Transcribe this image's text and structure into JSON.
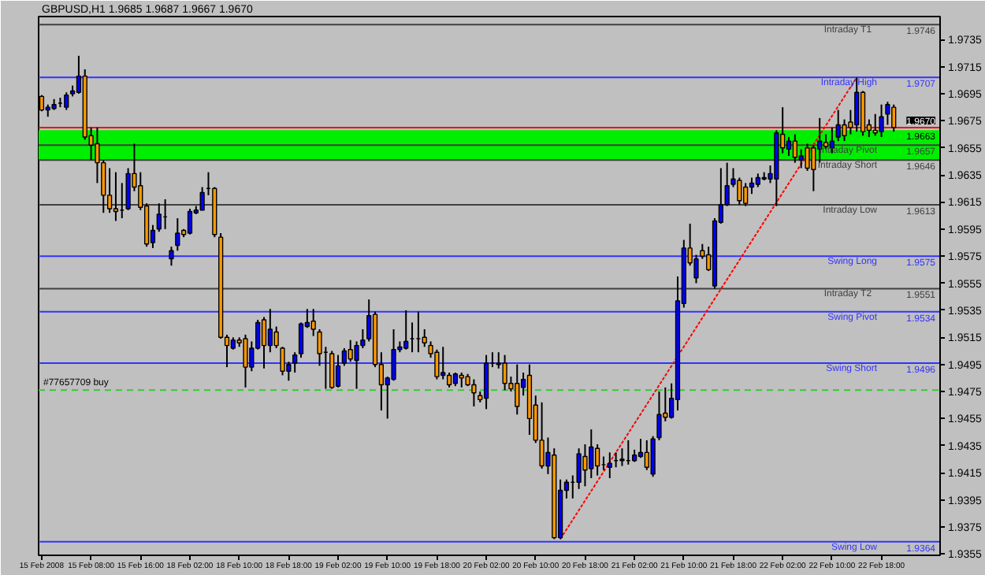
{
  "chart_data": {
    "type": "candlestick",
    "title": "GBPUSD,H1  1.9685 1.9687 1.9667 1.9670",
    "categories": [
      "15 Feb 2008",
      null,
      null,
      null,
      null,
      null,
      null,
      null,
      "15 Feb 08:00",
      null,
      null,
      null,
      null,
      null,
      null,
      null,
      "15 Feb 16:00",
      null,
      null,
      null,
      null,
      null,
      null,
      null,
      "18 Feb 02:00",
      null,
      null,
      null,
      null,
      null,
      null,
      null,
      "18 Feb 10:00",
      null,
      null,
      null,
      null,
      null,
      null,
      null,
      "18 Feb 18:00",
      null,
      null,
      null,
      null,
      null,
      null,
      null,
      "19 Feb 02:00",
      null,
      null,
      null,
      null,
      null,
      null,
      null,
      "19 Feb 10:00",
      null,
      null,
      null,
      null,
      null,
      null,
      null,
      "19 Feb 18:00",
      null,
      null,
      null,
      null,
      null,
      null,
      null,
      "20 Feb 02:00",
      null,
      null,
      null,
      null,
      null,
      null,
      null,
      "20 Feb 10:00",
      null,
      null,
      null,
      null,
      null,
      null,
      null,
      "20 Feb 18:00",
      null,
      null,
      null,
      null,
      null,
      null,
      null,
      "21 Feb 02:00",
      null,
      null,
      null,
      null,
      null,
      null,
      null,
      "21 Feb 10:00",
      null,
      null,
      null,
      null,
      null,
      null,
      null,
      "21 Feb 18:00",
      null,
      null,
      null,
      null,
      null,
      null,
      null,
      "22 Feb 02:00",
      null,
      null,
      null,
      null,
      null,
      null,
      null,
      "22 Feb 10:00",
      null,
      null,
      null,
      null,
      null,
      null,
      null,
      "22 Feb 18:00",
      null,
      null,
      null,
      null,
      null,
      null,
      null,
      null,
      null
    ],
    "ylim": [
      1.9354,
      1.9752
    ],
    "yticks": [
      1.9355,
      1.9375,
      1.9395,
      1.9415,
      1.9435,
      1.9455,
      1.9475,
      1.9495,
      1.9515,
      1.9535,
      1.9555,
      1.9575,
      1.9595,
      1.9615,
      1.9635,
      1.9655,
      1.9675,
      1.9695,
      1.9715,
      1.9735
    ],
    "ohlc": [
      [
        1.9693,
        1.9694,
        1.9682,
        1.9683
      ],
      [
        1.9683,
        1.9687,
        1.9678,
        1.9685
      ],
      [
        1.9684,
        1.9691,
        1.9683,
        1.9687
      ],
      [
        1.9688,
        1.9692,
        1.9685,
        1.9688
      ],
      [
        1.9685,
        1.9696,
        1.9683,
        1.9694
      ],
      [
        1.9695,
        1.9701,
        1.9693,
        1.9697
      ],
      [
        1.9696,
        1.9723,
        1.9695,
        1.9708
      ],
      [
        1.9708,
        1.9713,
        1.9661,
        1.9663
      ],
      [
        1.9664,
        1.967,
        1.9646,
        1.9657
      ],
      [
        1.9658,
        1.967,
        1.9629,
        1.9644
      ],
      [
        1.9644,
        1.9646,
        1.9607,
        1.962
      ],
      [
        1.962,
        1.964,
        1.9607,
        1.961
      ],
      [
        1.961,
        1.9637,
        1.9601,
        1.9608
      ],
      [
        1.9609,
        1.9629,
        1.9603,
        1.9609
      ],
      [
        1.961,
        1.964,
        1.9609,
        1.9636
      ],
      [
        1.9636,
        1.9658,
        1.9623,
        1.9626
      ],
      [
        1.9627,
        1.9637,
        1.9609,
        1.9611
      ],
      [
        1.9612,
        1.9614,
        1.9582,
        1.9584
      ],
      [
        1.9585,
        1.9598,
        1.9581,
        1.9594
      ],
      [
        1.9595,
        1.9614,
        1.9593,
        1.9606
      ],
      [
        1.9604,
        1.9617,
        1.9595,
        1.9604
      ],
      [
        1.9573,
        1.9582,
        1.9568,
        1.9579
      ],
      [
        1.9583,
        1.9603,
        1.9579,
        1.9592
      ],
      [
        1.9594,
        1.9595,
        1.9589,
        1.9591
      ],
      [
        1.9592,
        1.961,
        1.9591,
        1.9608
      ],
      [
        1.9607,
        1.9612,
        1.9606,
        1.9609
      ],
      [
        1.9609,
        1.9626,
        1.9609,
        1.9622
      ],
      [
        1.9625,
        1.9637,
        1.962,
        1.9625
      ],
      [
        1.9625,
        1.9626,
        1.9589,
        1.9591
      ],
      [
        1.9589,
        1.9592,
        1.9514,
        1.9515
      ],
      [
        1.9515,
        1.9517,
        1.9493,
        1.9509
      ],
      [
        1.9507,
        1.9515,
        1.9506,
        1.9513
      ],
      [
        1.9513,
        1.9515,
        1.9508,
        1.9511
      ],
      [
        1.9514,
        1.9517,
        1.9478,
        1.9493
      ],
      [
        1.9493,
        1.9512,
        1.949,
        1.9507
      ],
      [
        1.9507,
        1.9528,
        1.9506,
        1.9526
      ],
      [
        1.9528,
        1.953,
        1.9492,
        1.9509
      ],
      [
        1.9509,
        1.9536,
        1.9504,
        1.9521
      ],
      [
        1.9519,
        1.9523,
        1.9507,
        1.9509
      ],
      [
        1.9507,
        1.9508,
        1.9487,
        1.949
      ],
      [
        1.949,
        1.9497,
        1.9483,
        1.9495
      ],
      [
        1.9496,
        1.9504,
        1.9489,
        1.9502
      ],
      [
        1.9503,
        1.9526,
        1.95,
        1.9525
      ],
      [
        1.9523,
        1.9536,
        1.9522,
        1.9526
      ],
      [
        1.9527,
        1.9536,
        1.9516,
        1.9521
      ],
      [
        1.9519,
        1.9521,
        1.9494,
        1.9503
      ],
      [
        1.9504,
        1.9508,
        1.9477,
        1.9504
      ],
      [
        1.9503,
        1.9505,
        1.9477,
        1.9478
      ],
      [
        1.9479,
        1.9502,
        1.9478,
        1.9494
      ],
      [
        1.9496,
        1.9507,
        1.9494,
        1.9505
      ],
      [
        1.9506,
        1.9513,
        1.9497,
        1.9499
      ],
      [
        1.9498,
        1.9512,
        1.9477,
        1.9509
      ],
      [
        1.9509,
        1.9521,
        1.9507,
        1.9513
      ],
      [
        1.9514,
        1.9543,
        1.9512,
        1.9531
      ],
      [
        1.9532,
        1.9534,
        1.9493,
        1.9495
      ],
      [
        1.9495,
        1.9504,
        1.9461,
        1.948
      ],
      [
        1.948,
        1.9486,
        1.9455,
        1.9485
      ],
      [
        1.9484,
        1.9521,
        1.9483,
        1.9506
      ],
      [
        1.9506,
        1.9512,
        1.9504,
        1.9508
      ],
      [
        1.9507,
        1.9535,
        1.9506,
        1.9512
      ],
      [
        1.9514,
        1.9526,
        1.9504,
        1.9514
      ],
      [
        1.9514,
        1.9534,
        1.9504,
        1.9514
      ],
      [
        1.9515,
        1.9521,
        1.9508,
        1.9511
      ],
      [
        1.9509,
        1.9512,
        1.95,
        1.9503
      ],
      [
        1.9504,
        1.9506,
        1.9484,
        1.9486
      ],
      [
        1.9487,
        1.9508,
        1.9484,
        1.9489
      ],
      [
        1.9487,
        1.9489,
        1.9478,
        1.948
      ],
      [
        1.9481,
        1.9489,
        1.9479,
        1.9488
      ],
      [
        1.9487,
        1.9489,
        1.9478,
        1.9485
      ],
      [
        1.9486,
        1.9488,
        1.9479,
        1.948
      ],
      [
        1.948,
        1.9484,
        1.9464,
        1.9474
      ],
      [
        1.9472,
        1.9475,
        1.9467,
        1.9469
      ],
      [
        1.947,
        1.9502,
        1.9462,
        1.9496
      ],
      [
        1.9496,
        1.9504,
        1.9493,
        1.9496
      ],
      [
        1.9495,
        1.9504,
        1.9492,
        1.9496
      ],
      [
        1.9496,
        1.9502,
        1.9476,
        1.9481
      ],
      [
        1.9481,
        1.9486,
        1.9475,
        1.9477
      ],
      [
        1.9481,
        1.9495,
        1.9458,
        1.9464
      ],
      [
        1.9478,
        1.9489,
        1.9472,
        1.9484
      ],
      [
        1.9487,
        1.9495,
        1.9443,
        1.9455
      ],
      [
        1.9465,
        1.9472,
        1.9437,
        1.9439
      ],
      [
        1.9439,
        1.9467,
        1.9418,
        1.942
      ],
      [
        1.942,
        1.9441,
        1.9414,
        1.943
      ],
      [
        1.9428,
        1.9433,
        1.9366,
        1.9367
      ],
      [
        1.9367,
        1.941,
        1.9366,
        1.9402
      ],
      [
        1.9402,
        1.941,
        1.9396,
        1.9408
      ],
      [
        1.9408,
        1.9413,
        1.9396,
        1.9408
      ],
      [
        1.9408,
        1.9433,
        1.9403,
        1.9429
      ],
      [
        1.9427,
        1.9436,
        1.9405,
        1.9417
      ],
      [
        1.9418,
        1.9447,
        1.9411,
        1.9434
      ],
      [
        1.9433,
        1.9436,
        1.9413,
        1.942
      ],
      [
        1.9421,
        1.9427,
        1.9417,
        1.9421
      ],
      [
        1.9419,
        1.943,
        1.9411,
        1.9422
      ],
      [
        1.9424,
        1.943,
        1.9419,
        1.9424
      ],
      [
        1.9424,
        1.9433,
        1.942,
        1.9425
      ],
      [
        1.9424,
        1.9439,
        1.9421,
        1.9424
      ],
      [
        1.9424,
        1.9432,
        1.9423,
        1.9428
      ],
      [
        1.9427,
        1.944,
        1.9426,
        1.943
      ],
      [
        1.943,
        1.9439,
        1.9417,
        1.9419
      ],
      [
        1.9414,
        1.9442,
        1.9412,
        1.944
      ],
      [
        1.9441,
        1.9475,
        1.9439,
        1.9458
      ],
      [
        1.9459,
        1.9478,
        1.9453,
        1.9456
      ],
      [
        1.9456,
        1.9481,
        1.9455,
        1.947
      ],
      [
        1.9469,
        1.956,
        1.9461,
        1.9542
      ],
      [
        1.954,
        1.9587,
        1.9537,
        1.9581
      ],
      [
        1.9581,
        1.9599,
        1.9568,
        1.957
      ],
      [
        1.9559,
        1.9576,
        1.9555,
        1.9573
      ],
      [
        1.9579,
        1.9584,
        1.9573,
        1.9575
      ],
      [
        1.9576,
        1.9582,
        1.9564,
        1.9565
      ],
      [
        1.9553,
        1.9603,
        1.9551,
        1.9601
      ],
      [
        1.96,
        1.964,
        1.9599,
        1.9613
      ],
      [
        1.9613,
        1.9644,
        1.9612,
        1.9627
      ],
      [
        1.9628,
        1.964,
        1.9626,
        1.9632
      ],
      [
        1.9631,
        1.9633,
        1.9613,
        1.9616
      ],
      [
        1.9626,
        1.9629,
        1.9612,
        1.9614
      ],
      [
        1.9626,
        1.9633,
        1.9621,
        1.9629
      ],
      [
        1.9628,
        1.9636,
        1.9626,
        1.9633
      ],
      [
        1.9632,
        1.9637,
        1.9631,
        1.9633
      ],
      [
        1.9632,
        1.9642,
        1.9629,
        1.9636
      ],
      [
        1.9632,
        1.9668,
        1.9612,
        1.9666
      ],
      [
        1.9665,
        1.9685,
        1.9651,
        1.9655
      ],
      [
        1.9654,
        1.9663,
        1.9649,
        1.966
      ],
      [
        1.966,
        1.9665,
        1.9644,
        1.9648
      ],
      [
        1.9646,
        1.9654,
        1.964,
        1.9649
      ],
      [
        1.9655,
        1.9658,
        1.9638,
        1.964
      ],
      [
        1.9655,
        1.9657,
        1.9623,
        1.9639
      ],
      [
        1.9654,
        1.9677,
        1.9644,
        1.966
      ],
      [
        1.9659,
        1.9665,
        1.9654,
        1.9656
      ],
      [
        1.9655,
        1.967,
        1.9651,
        1.966
      ],
      [
        1.9663,
        1.9683,
        1.966,
        1.9672
      ],
      [
        1.9672,
        1.9676,
        1.966,
        1.9664
      ],
      [
        1.9674,
        1.9683,
        1.9665,
        1.967
      ],
      [
        1.9672,
        1.9707,
        1.9667,
        1.9696
      ],
      [
        1.9696,
        1.9697,
        1.9664,
        1.9667
      ],
      [
        1.9672,
        1.9676,
        1.9663,
        1.9668
      ],
      [
        1.9668,
        1.968,
        1.9664,
        1.9666
      ],
      [
        1.9667,
        1.9687,
        1.9663,
        1.9678
      ],
      [
        1.968,
        1.9689,
        1.9672,
        1.9687
      ],
      [
        1.9685,
        1.9687,
        1.9667,
        1.967
      ],
      null,
      null,
      null,
      null,
      null,
      null,
      null
    ],
    "colors": [
      "#ff9900",
      "#0000ff",
      "#0000ff",
      "#000000",
      "#0000ff",
      "#0000ff",
      "#0000ff",
      "#ff9900",
      "#ff9900",
      "#ff9900",
      "#ff9900",
      "#ff9900",
      "#ff9900",
      "#000000",
      "#0000ff",
      "#ff9900",
      "#ff9900",
      "#ff9900",
      "#0000ff",
      "#0000ff",
      "#000000",
      "#0000ff",
      "#0000ff",
      "#ff9900",
      "#0000ff",
      "#0000ff",
      "#0000ff",
      "#000000",
      "#ff9900",
      "#ff9900",
      "#ff9900",
      "#0000ff",
      "#ff9900",
      "#ff9900",
      "#0000ff",
      "#0000ff",
      "#ff9900",
      "#0000ff",
      "#ff9900",
      "#ff9900",
      "#0000ff",
      "#0000ff",
      "#0000ff",
      "#0000ff",
      "#ff9900",
      "#ff9900",
      "#000000",
      "#ff9900",
      "#0000ff",
      "#0000ff",
      "#ff9900",
      "#0000ff",
      "#0000ff",
      "#0000ff",
      "#ff9900",
      "#ff9900",
      "#0000ff",
      "#0000ff",
      "#0000ff",
      "#0000ff",
      "#000000",
      "#000000",
      "#ff9900",
      "#ff9900",
      "#ff9900",
      "#0000ff",
      "#ff9900",
      "#0000ff",
      "#ff9900",
      "#ff9900",
      "#ff9900",
      "#ff9900",
      "#0000ff",
      "#000000",
      "#0000ff",
      "#ff9900",
      "#ff9900",
      "#ff9900",
      "#0000ff",
      "#ff9900",
      "#ff9900",
      "#ff9900",
      "#0000ff",
      "#ff9900",
      "#0000ff",
      "#0000ff",
      "#000000",
      "#0000ff",
      "#ff9900",
      "#0000ff",
      "#ff9900",
      "#000000",
      "#0000ff",
      "#000000",
      "#0000ff",
      "#000000",
      "#0000ff",
      "#0000ff",
      "#ff9900",
      "#0000ff",
      "#0000ff",
      "#ff9900",
      "#0000ff",
      "#0000ff",
      "#0000ff",
      "#ff9900",
      "#0000ff",
      "#ff9900",
      "#ff9900",
      "#0000ff",
      "#0000ff",
      "#0000ff",
      "#0000ff",
      "#ff9900",
      "#ff9900",
      "#0000ff",
      "#0000ff",
      "#0000ff",
      "#0000ff",
      "#0000ff",
      "#ff9900",
      "#0000ff",
      "#ff9900",
      "#0000ff",
      "#ff9900",
      "#ff9900",
      "#0000ff",
      "#ff9900",
      "#0000ff",
      "#0000ff",
      "#ff9900",
      "#ff9900",
      "#0000ff",
      "#ff9900",
      "#ff9900",
      "#ff9900",
      "#0000ff",
      "#0000ff",
      "#ff9900",
      null,
      null,
      null,
      null,
      null,
      null,
      null
    ],
    "series": [
      {
        "type": "line",
        "values": [
          null,
          null,
          null,
          null,
          null,
          null,
          null,
          null,
          null,
          null,
          null,
          null,
          null,
          null,
          null,
          null,
          null,
          null,
          null,
          null,
          null,
          null,
          null,
          null,
          null,
          null,
          null,
          null,
          null,
          null,
          null,
          null,
          null,
          null,
          null,
          null,
          null,
          null,
          null,
          null,
          null,
          null,
          null,
          null,
          null,
          null,
          null,
          null,
          null,
          null,
          null,
          null,
          null,
          null,
          null,
          null,
          null,
          null,
          null,
          null,
          null,
          null,
          null,
          null,
          null,
          null,
          null,
          null,
          null,
          null,
          null,
          null,
          null,
          null,
          null,
          null,
          null,
          null,
          null,
          null,
          null,
          null,
          null,
          null,
          1.9366,
          null,
          null,
          null,
          null,
          null,
          null,
          null,
          null,
          null,
          null,
          null,
          null,
          null,
          null,
          null,
          null,
          null,
          null,
          null,
          null,
          null,
          null,
          null,
          null,
          null,
          null,
          null,
          null,
          null,
          null,
          null,
          null,
          null,
          null,
          null,
          null,
          null,
          null,
          null,
          null,
          null,
          null,
          null,
          null,
          null,
          null,
          null,
          1.9707,
          null,
          null,
          null,
          null,
          null,
          null,
          null,
          null,
          null,
          null,
          null,
          null,
          null
        ],
        "color": "#ff0000",
        "line_style": "dotted"
      }
    ],
    "bands": [
      {
        "axis": "y",
        "from": 1.9646,
        "to": 1.9668,
        "label": "1.9663",
        "color": "#00ee00"
      }
    ],
    "ref_lines": [
      {
        "axis": "y",
        "value": 1.9746,
        "label": "Intraday   T1",
        "color": "#404040"
      },
      {
        "axis": "y",
        "value": 1.9707,
        "label": "Intraday High",
        "color": "#3333ff"
      },
      {
        "axis": "y",
        "value": 1.967,
        "label": null,
        "color": "#ff0000"
      },
      {
        "axis": "y",
        "value": 1.9657,
        "label": "Intraday Pivot",
        "color": "#404040"
      },
      {
        "axis": "y",
        "value": 1.9646,
        "label": "Intraday Short",
        "color": "#404040"
      },
      {
        "axis": "y",
        "value": 1.9613,
        "label": "Intraday Low",
        "color": "#404040"
      },
      {
        "axis": "y",
        "value": 1.9575,
        "label": "Swing Long",
        "color": "#3333ff"
      },
      {
        "axis": "y",
        "value": 1.9551,
        "label": "Intraday   T2",
        "color": "#404040"
      },
      {
        "axis": "y",
        "value": 1.9534,
        "label": "Swing Pivot",
        "color": "#3333ff"
      },
      {
        "axis": "y",
        "value": 1.9496,
        "label": "Swing Short",
        "color": "#3333ff"
      },
      {
        "axis": "y",
        "value": 1.9476,
        "label": "#77657709 buy",
        "color": "#33cc33",
        "line_style": "dashed"
      },
      {
        "axis": "y",
        "value": 1.9364,
        "label": "Swing Low",
        "color": "#3333ff"
      }
    ],
    "annotations": [
      {
        "text": "1.9746",
        "y": 1.9746
      },
      {
        "text": "1.9707",
        "y": 1.9707
      },
      {
        "text": "1.9670",
        "y": 1.967
      },
      {
        "text": "1.9657",
        "y": 1.9657
      },
      {
        "text": "1.9646",
        "y": 1.9646
      },
      {
        "text": "1.9613",
        "y": 1.9613
      },
      {
        "text": "1.9575",
        "y": 1.9575
      },
      {
        "text": "1.9551",
        "y": 1.9551
      },
      {
        "text": "1.9534",
        "y": 1.9534
      },
      {
        "text": "1.9496",
        "y": 1.9496
      },
      {
        "text": "1.9364",
        "y": 1.9364
      }
    ]
  }
}
